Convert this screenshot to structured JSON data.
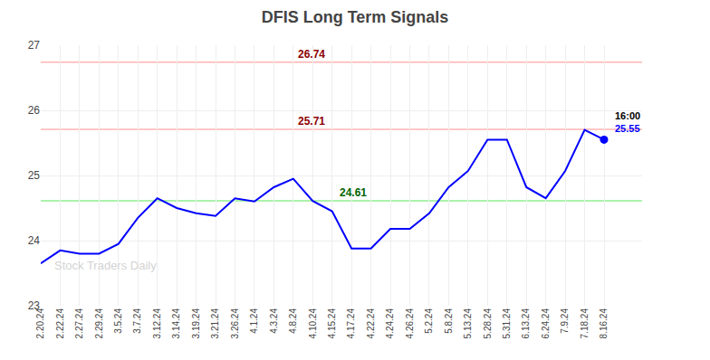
{
  "chart_data": {
    "type": "line",
    "title": "DFIS Long Term Signals",
    "categories": [
      "2.20.24",
      "2.22.24",
      "2.27.24",
      "2.29.24",
      "3.5.24",
      "3.7.24",
      "3.12.24",
      "3.14.24",
      "3.19.24",
      "3.21.24",
      "3.26.24",
      "4.1.24",
      "4.3.24",
      "4.8.24",
      "4.10.24",
      "4.15.24",
      "4.17.24",
      "4.22.24",
      "4.24.24",
      "4.26.24",
      "5.2.24",
      "5.8.24",
      "5.13.24",
      "5.28.24",
      "5.31.24",
      "6.13.24",
      "6.24.24",
      "7.9.24",
      "7.18.24",
      "8.16.24"
    ],
    "values": [
      23.65,
      23.85,
      23.8,
      23.8,
      23.95,
      24.35,
      24.65,
      24.5,
      24.42,
      24.38,
      24.65,
      24.6,
      24.82,
      24.95,
      24.61,
      24.45,
      23.88,
      23.88,
      24.18,
      24.18,
      24.42,
      24.82,
      25.07,
      25.55,
      25.55,
      24.82,
      24.65,
      25.07,
      25.7,
      25.55
    ],
    "color": "blue",
    "ylim": [
      23,
      27
    ],
    "yticks": [
      23,
      24,
      25,
      26,
      27
    ],
    "grid": true,
    "hlines": [
      {
        "value": 26.74,
        "color": "#ffb3b3",
        "label_color": "#8b0000"
      },
      {
        "value": 25.71,
        "color": "#ffb3b3",
        "label_color": "#8b0000"
      },
      {
        "value": 24.61,
        "color": "#90ee90",
        "label_color": "#006400"
      }
    ],
    "annotations": [
      {
        "text": "16:00",
        "color": "black"
      },
      {
        "text": "25.55",
        "color": "blue"
      }
    ],
    "watermark": "Stock Traders Daily"
  }
}
